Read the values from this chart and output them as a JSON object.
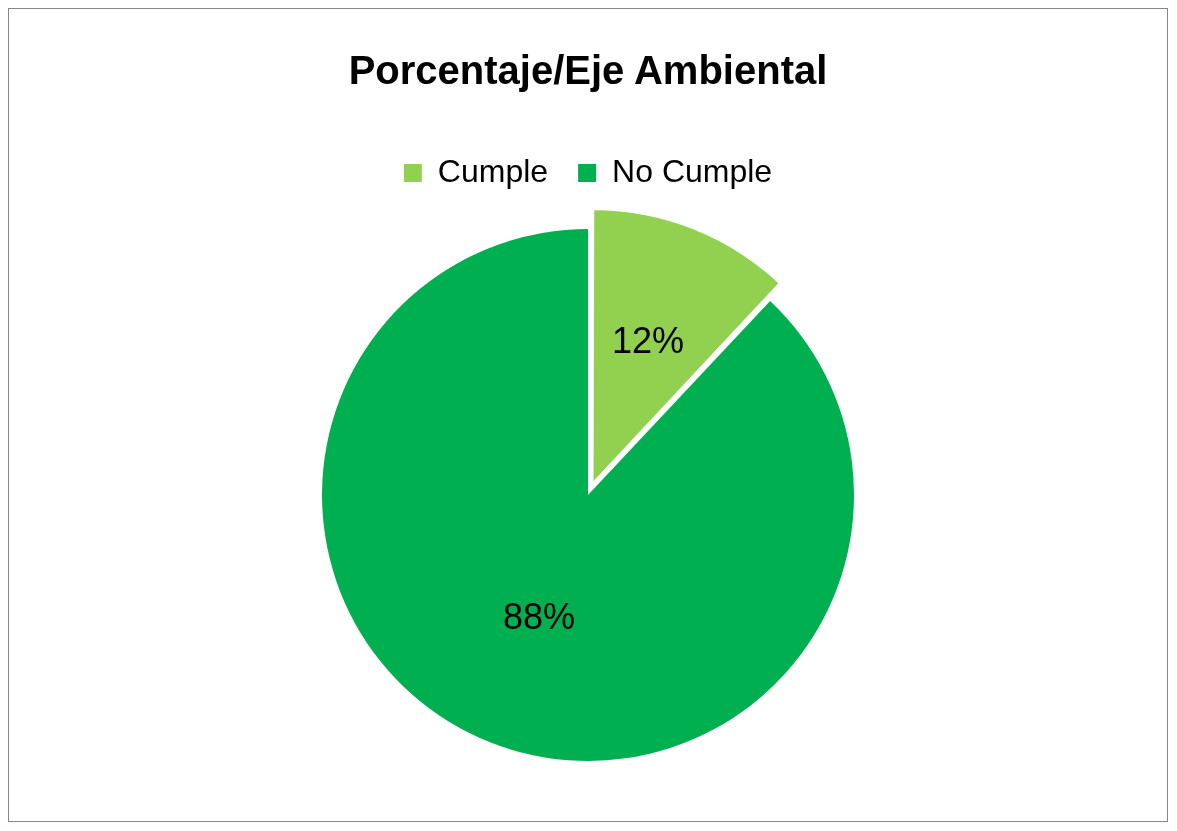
{
  "chart_data": {
    "type": "pie",
    "title": "Porcentaje/Eje Ambiental",
    "categories": [
      "Cumple",
      "No Cumple"
    ],
    "values": [
      12,
      88
    ],
    "colors": [
      "#92d050",
      "#00b050"
    ],
    "value_labels": [
      "12%",
      "88%"
    ],
    "legend": "top"
  }
}
